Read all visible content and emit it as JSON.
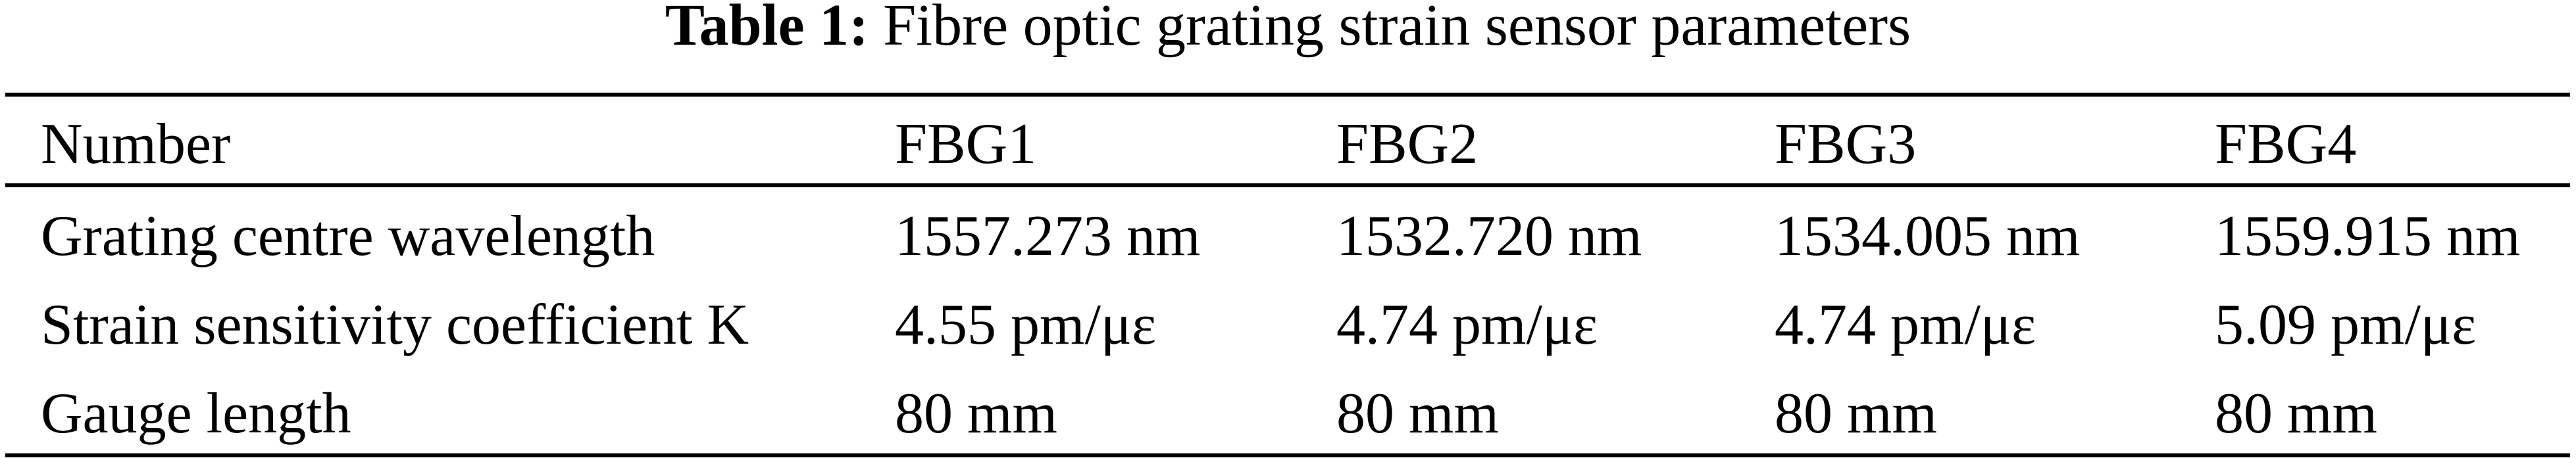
{
  "caption": {
    "label": "Table 1:",
    "text": "Fibre optic grating strain sensor parameters"
  },
  "table": {
    "headers": [
      "Number",
      "FBG1",
      "FBG2",
      "FBG3",
      "FBG4"
    ],
    "rows": [
      [
        "Grating centre wavelength",
        "1557.273 nm",
        "1532.720 nm",
        "1534.005 nm",
        "1559.915 nm"
      ],
      [
        "Strain sensitivity coefficient K",
        "4.55 pm/με",
        "4.74 pm/με",
        "4.74 pm/με",
        "5.09 pm/με"
      ],
      [
        "Gauge length",
        "80 mm",
        "80 mm",
        "80 mm",
        "80 mm"
      ]
    ]
  }
}
